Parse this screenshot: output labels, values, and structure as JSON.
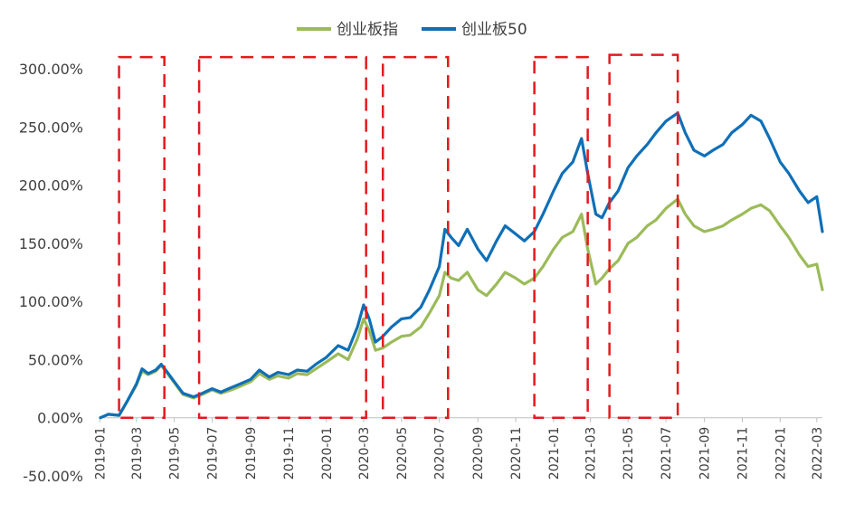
{
  "chart_data": {
    "type": "line",
    "title": "",
    "xlabel": "",
    "ylabel": "",
    "ylim": [
      -0.5,
      3.0
    ],
    "xlim": [
      "2019-01",
      "2022-03"
    ],
    "grid": false,
    "legend_position": "top",
    "y_ticks": [
      "300.00%",
      "250.00%",
      "200.00%",
      "150.00%",
      "100.00%",
      "50.00%",
      "0.00%",
      "-50.00%"
    ],
    "y_tick_values": [
      3.0,
      2.5,
      2.0,
      1.5,
      1.0,
      0.5,
      0.0,
      -0.5
    ],
    "x_ticks": [
      "2019-01",
      "2019-03",
      "2019-05",
      "2019-07",
      "2019-09",
      "2019-11",
      "2020-01",
      "2020-03",
      "2020-05",
      "2020-07",
      "2020-09",
      "2020-11",
      "2021-01",
      "2021-03",
      "2021-05",
      "2021-07",
      "2021-09",
      "2021-11",
      "2022-01",
      "2022-03"
    ],
    "series": [
      {
        "name": "创业板指",
        "color": "#9bbb59",
        "points": [
          [
            "2019-01-02",
            0.0
          ],
          [
            "2019-01-15",
            0.03
          ],
          [
            "2019-02-01",
            0.02
          ],
          [
            "2019-02-15",
            0.15
          ],
          [
            "2019-03-01",
            0.28
          ],
          [
            "2019-03-10",
            0.4
          ],
          [
            "2019-03-20",
            0.37
          ],
          [
            "2019-04-01",
            0.4
          ],
          [
            "2019-04-10",
            0.45
          ],
          [
            "2019-04-20",
            0.38
          ],
          [
            "2019-05-01",
            0.3
          ],
          [
            "2019-05-15",
            0.2
          ],
          [
            "2019-06-01",
            0.17
          ],
          [
            "2019-06-15",
            0.2
          ],
          [
            "2019-07-01",
            0.24
          ],
          [
            "2019-07-15",
            0.21
          ],
          [
            "2019-08-01",
            0.24
          ],
          [
            "2019-08-15",
            0.27
          ],
          [
            "2019-09-01",
            0.31
          ],
          [
            "2019-09-15",
            0.38
          ],
          [
            "2019-10-01",
            0.33
          ],
          [
            "2019-10-15",
            0.36
          ],
          [
            "2019-11-01",
            0.34
          ],
          [
            "2019-11-15",
            0.38
          ],
          [
            "2019-12-01",
            0.37
          ],
          [
            "2019-12-15",
            0.42
          ],
          [
            "2020-01-01",
            0.48
          ],
          [
            "2020-01-20",
            0.55
          ],
          [
            "2020-02-05",
            0.5
          ],
          [
            "2020-02-20",
            0.68
          ],
          [
            "2020-03-01",
            0.85
          ],
          [
            "2020-03-10",
            0.75
          ],
          [
            "2020-03-20",
            0.58
          ],
          [
            "2020-04-01",
            0.6
          ],
          [
            "2020-04-15",
            0.65
          ],
          [
            "2020-05-01",
            0.7
          ],
          [
            "2020-05-15",
            0.71
          ],
          [
            "2020-06-01",
            0.78
          ],
          [
            "2020-06-15",
            0.9
          ],
          [
            "2020-07-01",
            1.05
          ],
          [
            "2020-07-10",
            1.25
          ],
          [
            "2020-07-20",
            1.2
          ],
          [
            "2020-08-01",
            1.18
          ],
          [
            "2020-08-15",
            1.25
          ],
          [
            "2020-09-01",
            1.1
          ],
          [
            "2020-09-15",
            1.05
          ],
          [
            "2020-10-01",
            1.15
          ],
          [
            "2020-10-15",
            1.25
          ],
          [
            "2020-11-01",
            1.2
          ],
          [
            "2020-11-15",
            1.15
          ],
          [
            "2020-12-01",
            1.2
          ],
          [
            "2020-12-15",
            1.3
          ],
          [
            "2021-01-01",
            1.45
          ],
          [
            "2021-01-15",
            1.55
          ],
          [
            "2021-02-01",
            1.6
          ],
          [
            "2021-02-15",
            1.75
          ],
          [
            "2021-02-25",
            1.45
          ],
          [
            "2021-03-10",
            1.15
          ],
          [
            "2021-03-20",
            1.2
          ],
          [
            "2021-04-01",
            1.28
          ],
          [
            "2021-04-15",
            1.35
          ],
          [
            "2021-05-01",
            1.5
          ],
          [
            "2021-05-15",
            1.55
          ],
          [
            "2021-06-01",
            1.65
          ],
          [
            "2021-06-15",
            1.7
          ],
          [
            "2021-07-01",
            1.8
          ],
          [
            "2021-07-20",
            1.88
          ],
          [
            "2021-08-01",
            1.75
          ],
          [
            "2021-08-15",
            1.65
          ],
          [
            "2021-09-01",
            1.6
          ],
          [
            "2021-09-15",
            1.62
          ],
          [
            "2021-10-01",
            1.65
          ],
          [
            "2021-10-15",
            1.7
          ],
          [
            "2021-11-01",
            1.75
          ],
          [
            "2021-11-15",
            1.8
          ],
          [
            "2021-12-01",
            1.83
          ],
          [
            "2021-12-15",
            1.78
          ],
          [
            "2022-01-01",
            1.65
          ],
          [
            "2022-01-15",
            1.55
          ],
          [
            "2022-02-01",
            1.4
          ],
          [
            "2022-02-15",
            1.3
          ],
          [
            "2022-03-01",
            1.32
          ],
          [
            "2022-03-10",
            1.1
          ]
        ]
      },
      {
        "name": "创业板50",
        "color": "#0f6fb7",
        "points": [
          [
            "2019-01-02",
            0.0
          ],
          [
            "2019-01-15",
            0.03
          ],
          [
            "2019-02-01",
            0.02
          ],
          [
            "2019-02-15",
            0.15
          ],
          [
            "2019-03-01",
            0.29
          ],
          [
            "2019-03-10",
            0.42
          ],
          [
            "2019-03-20",
            0.38
          ],
          [
            "2019-04-01",
            0.41
          ],
          [
            "2019-04-10",
            0.46
          ],
          [
            "2019-04-20",
            0.39
          ],
          [
            "2019-05-01",
            0.31
          ],
          [
            "2019-05-15",
            0.21
          ],
          [
            "2019-06-01",
            0.18
          ],
          [
            "2019-06-15",
            0.21
          ],
          [
            "2019-07-01",
            0.25
          ],
          [
            "2019-07-15",
            0.22
          ],
          [
            "2019-08-01",
            0.26
          ],
          [
            "2019-08-15",
            0.29
          ],
          [
            "2019-09-01",
            0.33
          ],
          [
            "2019-09-15",
            0.41
          ],
          [
            "2019-10-01",
            0.35
          ],
          [
            "2019-10-15",
            0.39
          ],
          [
            "2019-11-01",
            0.37
          ],
          [
            "2019-11-15",
            0.41
          ],
          [
            "2019-12-01",
            0.4
          ],
          [
            "2019-12-15",
            0.46
          ],
          [
            "2020-01-01",
            0.52
          ],
          [
            "2020-01-20",
            0.62
          ],
          [
            "2020-02-05",
            0.58
          ],
          [
            "2020-02-20",
            0.78
          ],
          [
            "2020-03-01",
            0.97
          ],
          [
            "2020-03-10",
            0.85
          ],
          [
            "2020-03-20",
            0.65
          ],
          [
            "2020-04-01",
            0.7
          ],
          [
            "2020-04-15",
            0.78
          ],
          [
            "2020-05-01",
            0.85
          ],
          [
            "2020-05-15",
            0.86
          ],
          [
            "2020-06-01",
            0.95
          ],
          [
            "2020-06-15",
            1.1
          ],
          [
            "2020-07-01",
            1.3
          ],
          [
            "2020-07-10",
            1.62
          ],
          [
            "2020-07-20",
            1.55
          ],
          [
            "2020-08-01",
            1.48
          ],
          [
            "2020-08-15",
            1.62
          ],
          [
            "2020-09-01",
            1.45
          ],
          [
            "2020-09-15",
            1.35
          ],
          [
            "2020-10-01",
            1.52
          ],
          [
            "2020-10-15",
            1.65
          ],
          [
            "2020-11-01",
            1.58
          ],
          [
            "2020-11-15",
            1.52
          ],
          [
            "2020-12-01",
            1.6
          ],
          [
            "2020-12-15",
            1.75
          ],
          [
            "2021-01-01",
            1.95
          ],
          [
            "2021-01-15",
            2.1
          ],
          [
            "2021-02-01",
            2.2
          ],
          [
            "2021-02-15",
            2.4
          ],
          [
            "2021-02-25",
            2.1
          ],
          [
            "2021-03-10",
            1.75
          ],
          [
            "2021-03-20",
            1.72
          ],
          [
            "2021-04-01",
            1.85
          ],
          [
            "2021-04-15",
            1.95
          ],
          [
            "2021-05-01",
            2.15
          ],
          [
            "2021-05-15",
            2.25
          ],
          [
            "2021-06-01",
            2.35
          ],
          [
            "2021-06-15",
            2.45
          ],
          [
            "2021-07-01",
            2.55
          ],
          [
            "2021-07-20",
            2.62
          ],
          [
            "2021-08-01",
            2.45
          ],
          [
            "2021-08-15",
            2.3
          ],
          [
            "2021-09-01",
            2.25
          ],
          [
            "2021-09-15",
            2.3
          ],
          [
            "2021-10-01",
            2.35
          ],
          [
            "2021-10-15",
            2.45
          ],
          [
            "2021-11-01",
            2.52
          ],
          [
            "2021-11-15",
            2.6
          ],
          [
            "2021-12-01",
            2.55
          ],
          [
            "2021-12-15",
            2.4
          ],
          [
            "2022-01-01",
            2.2
          ],
          [
            "2022-01-15",
            2.1
          ],
          [
            "2022-02-01",
            1.95
          ],
          [
            "2022-02-15",
            1.85
          ],
          [
            "2022-03-01",
            1.9
          ],
          [
            "2022-03-10",
            1.6
          ]
        ]
      }
    ],
    "annotations": [
      {
        "type": "dashed-box",
        "color": "#e31a1c",
        "x_start": "2019-02-01",
        "x_end": "2019-04-15",
        "y_top": 3.1,
        "y_bottom": 0.0
      },
      {
        "type": "dashed-box",
        "color": "#e31a1c",
        "x_start": "2019-06-10",
        "x_end": "2020-03-05",
        "y_top": 3.1,
        "y_bottom": 0.0
      },
      {
        "type": "dashed-box",
        "color": "#e31a1c",
        "x_start": "2020-04-01",
        "x_end": "2020-07-15",
        "y_top": 3.1,
        "y_bottom": 0.0
      },
      {
        "type": "dashed-box",
        "color": "#e31a1c",
        "x_start": "2020-12-01",
        "x_end": "2021-02-25",
        "y_top": 3.1,
        "y_bottom": 0.0
      },
      {
        "type": "dashed-box",
        "color": "#e31a1c",
        "x_start": "2021-04-01",
        "x_end": "2021-07-20",
        "y_top": 3.12,
        "y_bottom": 0.0
      }
    ]
  }
}
